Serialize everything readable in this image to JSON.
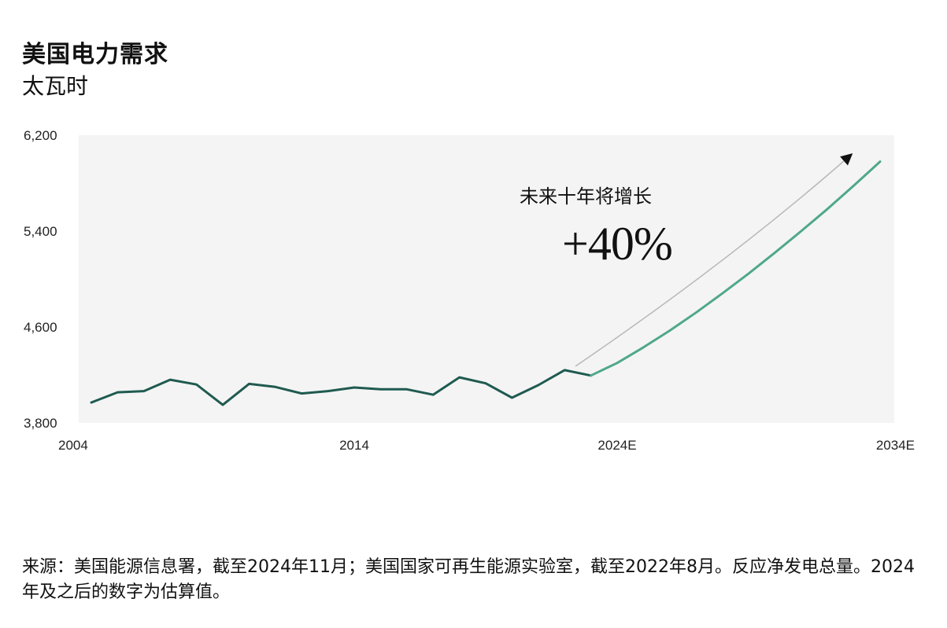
{
  "title": "美国电力需求",
  "subtitle": "太瓦时",
  "source": "来源：美国能源信息署，截至2024年11月；美国国家可再生能源实验室，截至2022年8月。反应净发电总量。2024年及之后的数字为估算值。",
  "chart_data": {
    "type": "line",
    "title": "美国电力需求",
    "ylabel": "太瓦时",
    "xlim": [
      2004,
      2034
    ],
    "ylim": [
      3800,
      6200
    ],
    "yticks": [
      3800,
      4600,
      5400,
      6200
    ],
    "yticklabels": [
      "3,800",
      "4,600",
      "5,400",
      "6,200"
    ],
    "xticks": [
      2004,
      2014,
      2024,
      2034
    ],
    "xticklabels": [
      "2004",
      "2014",
      "2024E",
      "2034E"
    ],
    "grid": false,
    "series": [
      {
        "color": "#1f5a50",
        "x": [
          2004,
          2005,
          2006,
          2007,
          2008,
          2009,
          2010,
          2011,
          2012,
          2013,
          2014,
          2015,
          2016,
          2017,
          2018,
          2019,
          2020,
          2021,
          2022,
          2023
        ],
        "y": [
          3970,
          4055,
          4065,
          4160,
          4120,
          3950,
          4125,
          4100,
          4045,
          4065,
          4095,
          4080,
          4080,
          4035,
          4180,
          4130,
          4010,
          4115,
          4240,
          4195
        ]
      },
      {
        "color": "#4fa88a",
        "x": [
          2023,
          2024,
          2025,
          2026,
          2027,
          2028,
          2029,
          2030,
          2031,
          2032,
          2033,
          2034
        ],
        "y": [
          4195,
          4300,
          4430,
          4570,
          4720,
          4880,
          5045,
          5220,
          5400,
          5585,
          5780,
          5980
        ]
      }
    ],
    "annotation": {
      "text": "未来十年将增长",
      "value": "+40%"
    }
  }
}
